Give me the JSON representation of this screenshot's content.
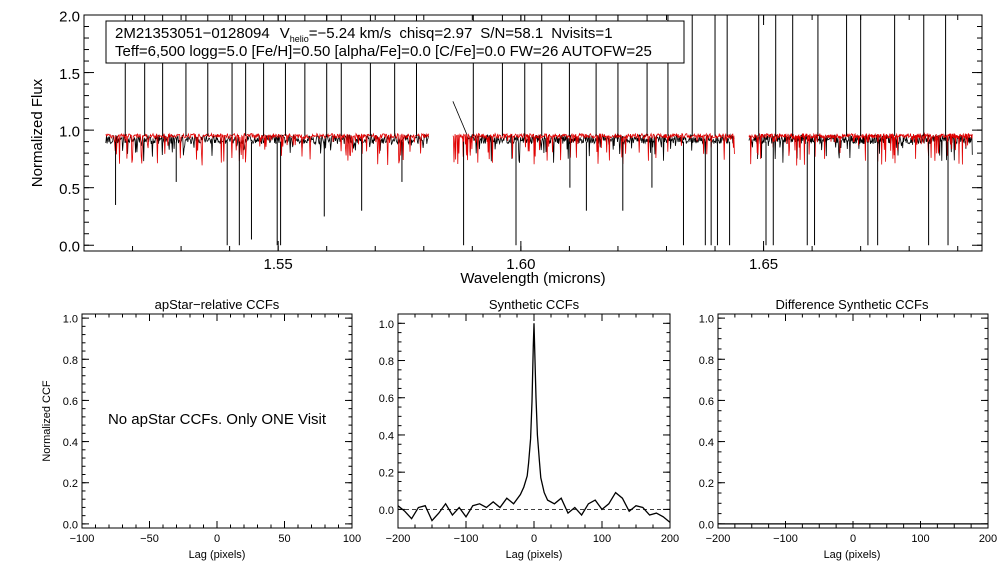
{
  "chart_data": [
    {
      "type": "line",
      "name": "spectrum",
      "title": "",
      "xlabel": "Wavelength (microns)",
      "ylabel": "Normalized Flux",
      "xlim": [
        1.51,
        1.695
      ],
      "ylim": [
        -0.05,
        2.0
      ],
      "xticks": [
        1.55,
        1.6,
        1.65
      ],
      "xtick_labels": [
        "1.55",
        "1.60",
        "1.65"
      ],
      "yticks": [
        0.0,
        0.5,
        1.0,
        1.5,
        2.0
      ],
      "ytick_labels": [
        "0.0",
        "0.5",
        "1.0",
        "1.5",
        "2.0"
      ],
      "annotation": {
        "star_id": "2M21353051−0128094",
        "vhelio_label": "V",
        "vhelio_sub": "helio",
        "vhelio_value": "=−5.24 km/s",
        "chisq": "chisq=2.97",
        "snr": "S/N=58.1",
        "nvisits": "Nvisits=1",
        "params_line": "Teff=6,500 logg=5.0 [Fe/H]=0.50 [alpha/Fe]=0.0 [C/Fe]=0.0 FW=26 AUTOFW=25"
      },
      "detectors": [
        [
          1.5145,
          1.581
        ],
        [
          1.586,
          1.644
        ],
        [
          1.647,
          1.693
        ]
      ],
      "series": [
        {
          "name": "observed spectrum",
          "color": "#000000",
          "baseline": 0.92,
          "noise": 0.04
        },
        {
          "name": "synthetic model",
          "color": "#e00000",
          "baseline": 0.95,
          "noise": 0.02
        }
      ],
      "spikes_up": [
        1.5185,
        1.5225,
        1.5262,
        1.531,
        1.5355,
        1.5405,
        1.5433,
        1.547,
        1.5515,
        1.5555,
        1.56,
        1.563,
        1.569,
        1.574,
        1.5785,
        1.5902,
        1.5962,
        1.6008,
        1.6043,
        1.61,
        1.6155,
        1.62,
        1.626,
        1.6303,
        1.6353,
        1.64,
        1.6425,
        1.649,
        1.6525,
        1.656,
        1.6612,
        1.6671,
        1.67,
        1.677,
        1.683,
        1.6875
      ],
      "spikes_down": [
        [
          1.5165,
          0.35
        ],
        [
          1.529,
          0.55
        ],
        [
          1.5395,
          0.0
        ],
        [
          1.542,
          0.0
        ],
        [
          1.5445,
          0.05
        ],
        [
          1.5498,
          0.0
        ],
        [
          1.5505,
          0.0
        ],
        [
          1.5595,
          0.25
        ],
        [
          1.5672,
          0.3
        ],
        [
          1.5755,
          0.55
        ],
        [
          1.5882,
          0.0
        ],
        [
          1.599,
          0.0
        ],
        [
          1.6101,
          0.5
        ],
        [
          1.6135,
          0.3
        ],
        [
          1.621,
          0.3
        ],
        [
          1.627,
          0.5
        ],
        [
          1.6335,
          0.0
        ],
        [
          1.638,
          0.0
        ],
        [
          1.6392,
          0.0
        ],
        [
          1.6405,
          0.0
        ],
        [
          1.643,
          0.0
        ],
        [
          1.6505,
          0.0
        ],
        [
          1.652,
          0.0
        ],
        [
          1.659,
          0.0
        ],
        [
          1.6605,
          0.0
        ],
        [
          1.6715,
          0.0
        ],
        [
          1.6735,
          0.0
        ],
        [
          1.684,
          0.0
        ],
        [
          1.688,
          0.0
        ]
      ]
    },
    {
      "type": "line",
      "name": "apstar_ccf",
      "title": "apStar−relative CCFs",
      "xlabel": "Lag (pixels)",
      "ylabel": "Normalized CCF",
      "xlim": [
        -100,
        100
      ],
      "ylim": [
        -0.02,
        1.02
      ],
      "xticks": [
        -100,
        -50,
        0,
        50,
        100
      ],
      "xtick_labels": [
        "−100",
        "−50",
        "0",
        "50",
        "100"
      ],
      "yticks": [
        0.0,
        0.2,
        0.4,
        0.6,
        0.8,
        1.0
      ],
      "ytick_labels": [
        "0.0",
        "0.2",
        "0.4",
        "0.6",
        "0.8",
        "1.0"
      ],
      "message": "No apStar CCFs.  Only ONE Visit",
      "series": []
    },
    {
      "type": "line",
      "name": "synthetic_ccf",
      "title": "Synthetic CCFs",
      "xlabel": "Lag (pixels)",
      "ylabel": "",
      "xlim": [
        -200,
        200
      ],
      "ylim": [
        -0.1,
        1.05
      ],
      "xticks": [
        -200,
        -100,
        0,
        100,
        200
      ],
      "xtick_labels": [
        "−200",
        "−100",
        "0",
        "100",
        "200"
      ],
      "yticks": [
        0.0,
        0.2,
        0.4,
        0.6,
        0.8,
        1.0
      ],
      "ytick_labels": [
        "0.0",
        "0.2",
        "0.4",
        "0.6",
        "0.8",
        "1.0"
      ],
      "reference_line": 0.0,
      "series": [
        {
          "name": "CCF",
          "color": "#000000",
          "x": [
            -200,
            -190,
            -180,
            -170,
            -160,
            -150,
            -140,
            -130,
            -120,
            -110,
            -100,
            -90,
            -80,
            -70,
            -60,
            -50,
            -40,
            -30,
            -20,
            -15,
            -10,
            -8,
            -5,
            -3,
            -1,
            0,
            1,
            3,
            5,
            8,
            10,
            15,
            20,
            30,
            40,
            50,
            60,
            70,
            80,
            90,
            100,
            110,
            120,
            130,
            140,
            150,
            160,
            170,
            180,
            190,
            200
          ],
          "y": [
            0.02,
            -0.01,
            -0.05,
            0.01,
            0.02,
            -0.06,
            -0.02,
            0.03,
            -0.03,
            0.01,
            -0.04,
            0.02,
            0.03,
            0.01,
            0.04,
            0.01,
            0.06,
            0.03,
            0.08,
            0.12,
            0.18,
            0.25,
            0.38,
            0.58,
            0.88,
            1.0,
            0.86,
            0.6,
            0.4,
            0.26,
            0.17,
            0.09,
            0.05,
            0.03,
            0.06,
            -0.02,
            0.01,
            -0.03,
            0.03,
            0.05,
            0.0,
            0.03,
            0.09,
            0.06,
            -0.01,
            0.02,
            0.01,
            -0.03,
            -0.02,
            -0.04,
            -0.07
          ]
        }
      ]
    },
    {
      "type": "line",
      "name": "difference_ccf",
      "title": "Difference Synthetic CCFs",
      "xlabel": "Lag (pixels)",
      "ylabel": "",
      "xlim": [
        -200,
        200
      ],
      "ylim": [
        -0.02,
        1.02
      ],
      "xticks": [
        -200,
        -100,
        0,
        100,
        200
      ],
      "xtick_labels": [
        "−200",
        "−100",
        "0",
        "100",
        "200"
      ],
      "yticks": [
        0.0,
        0.2,
        0.4,
        0.6,
        0.8,
        1.0
      ],
      "ytick_labels": [
        "0.0",
        "0.2",
        "0.4",
        "0.6",
        "0.8",
        "1.0"
      ],
      "series": [
        {
          "name": "difference",
          "color": "#000000",
          "x": [
            -200,
            200
          ],
          "y": [
            0.0,
            0.0
          ]
        }
      ]
    }
  ]
}
